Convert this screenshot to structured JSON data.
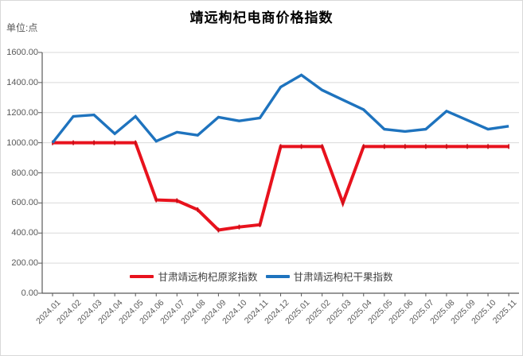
{
  "page": {
    "title": "靖远枸杞电商价格指数",
    "unit_label": "单位:点"
  },
  "colors": {
    "background": "#FFFFFF",
    "border": "#D9D9D9",
    "grid": "#D9D9D9",
    "axis": "#595959",
    "tick_text": "#595959",
    "title_text": "#000000",
    "legend_text": "#404040",
    "red_series": "#E8121D",
    "red_marker": "#C00F18",
    "blue_series": "#1E73BE"
  },
  "chart_data": {
    "type": "line",
    "title": "靖远枸杞电商价格指数",
    "unit_label": "单位:点",
    "x": [
      "2024.01",
      "2024.02",
      "2024.03",
      "2024.04",
      "2024.05",
      "2024.06",
      "2024.07",
      "2024.08",
      "2024.09",
      "2024.10",
      "2024.11",
      "2024.12",
      "2025.01",
      "2025.02",
      "2025.03",
      "2025.04",
      "2025.05",
      "2025.06",
      "2025.07",
      "2025.08",
      "2025.09",
      "2025.10",
      "2025.11"
    ],
    "series": [
      {
        "name": "甘肃靖远枸杞原浆指数",
        "color": "#E8121D",
        "values": [
          1000,
          1000,
          1000,
          1000,
          1000,
          620,
          615,
          555,
          420,
          440,
          455,
          975,
          975,
          975,
          600,
          975,
          975,
          975,
          975,
          975,
          975,
          975,
          975
        ]
      },
      {
        "name": "甘肃靖远枸杞干果指数",
        "color": "#1E73BE",
        "values": [
          1000,
          1175,
          1185,
          1060,
          1175,
          1010,
          1070,
          1050,
          1170,
          1145,
          1165,
          1370,
          1450,
          1350,
          1285,
          1220,
          1090,
          1075,
          1090,
          1210,
          1150,
          1090,
          1110
        ]
      }
    ],
    "xlabel": "",
    "ylabel": "点",
    "ylim": [
      0,
      1600
    ],
    "ytick_step": 200,
    "ytick_labels": [
      "0.00",
      "200.00",
      "400.00",
      "600.00",
      "800.00",
      "1000.00",
      "1200.00",
      "1400.00",
      "1600.00"
    ],
    "grid": true,
    "legend_position": "bottom-center-inside"
  }
}
